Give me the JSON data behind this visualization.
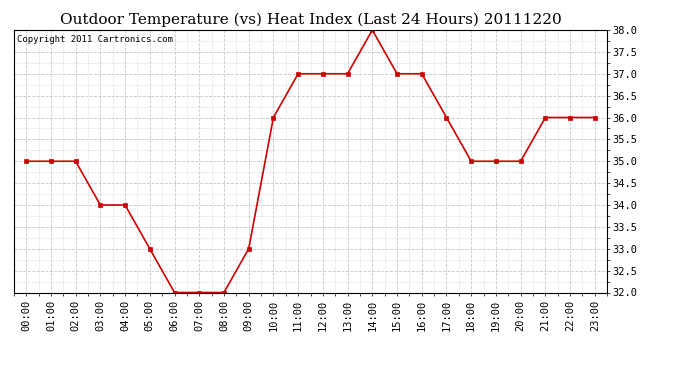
{
  "title": "Outdoor Temperature (vs) Heat Index (Last 24 Hours) 20111220",
  "copyright": "Copyright 2011 Cartronics.com",
  "x_labels": [
    "00:00",
    "01:00",
    "02:00",
    "03:00",
    "04:00",
    "05:00",
    "06:00",
    "07:00",
    "08:00",
    "09:00",
    "10:00",
    "11:00",
    "12:00",
    "13:00",
    "14:00",
    "15:00",
    "16:00",
    "17:00",
    "18:00",
    "19:00",
    "20:00",
    "21:00",
    "22:00",
    "23:00"
  ],
  "y_values": [
    35.0,
    35.0,
    35.0,
    34.0,
    34.0,
    33.0,
    32.0,
    32.0,
    32.0,
    33.0,
    36.0,
    37.0,
    37.0,
    37.0,
    38.0,
    37.0,
    37.0,
    36.0,
    35.0,
    35.0,
    35.0,
    36.0,
    36.0,
    36.0
  ],
  "line_color": "#cc0000",
  "marker": "s",
  "marker_size": 3,
  "ylim": [
    32.0,
    38.0
  ],
  "ytick_interval": 0.5,
  "background_color": "#ffffff",
  "plot_bg_color": "#ffffff",
  "grid_color": "#c8c8c8",
  "grid_style": "--",
  "title_fontsize": 11,
  "copyright_fontsize": 6.5,
  "tick_fontsize": 7.5
}
